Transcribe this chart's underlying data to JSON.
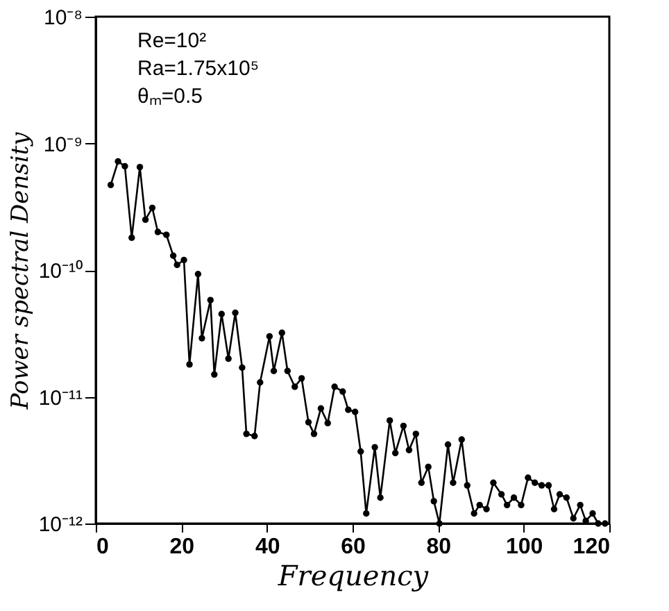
{
  "chart_data": {
    "type": "line",
    "xlabel": "Frequency",
    "ylabel": "Power spectral Density",
    "log": "y",
    "marker": "circle",
    "line_style": "solid",
    "grid": false,
    "annotations": [
      "Re=10²",
      "Ra=1.75x10⁵",
      "θₘ=0.5"
    ],
    "xlim": [
      0,
      120
    ],
    "xticks": [
      0,
      20,
      40,
      60,
      80,
      100,
      120
    ],
    "ylim": [
      1e-12,
      1e-08
    ],
    "yticks": [
      {
        "value": 1e-12,
        "label": "10⁻¹²"
      },
      {
        "value": 1e-11,
        "label": "10⁻¹¹"
      },
      {
        "value": 1e-10,
        "label": "10⁻¹⁰"
      },
      {
        "value": 1e-09,
        "label": "10⁻⁹"
      },
      {
        "value": 1e-08,
        "label": "10⁻⁸"
      }
    ],
    "series": [
      {
        "color": "#000000",
        "x": [
          3.5,
          5.2,
          6.8,
          8.4,
          10.3,
          11.6,
          13.2,
          14.5,
          16.5,
          18.1,
          19.0,
          20.6,
          21.9,
          23.9,
          24.8,
          26.8,
          27.7,
          29.4,
          31.0,
          32.6,
          34.2,
          35.2,
          37.1,
          38.4,
          40.6,
          41.6,
          43.5,
          44.8,
          46.5,
          48.1,
          49.7,
          51.0,
          52.6,
          54.2,
          55.8,
          57.7,
          59.0,
          60.6,
          61.9,
          63.2,
          65.2,
          66.5,
          68.7,
          70.0,
          71.9,
          73.2,
          74.8,
          76.1,
          77.7,
          79.0,
          80.3,
          82.3,
          83.5,
          85.5,
          86.8,
          88.4,
          89.7,
          91.3,
          92.9,
          94.8,
          96.1,
          97.7,
          99.4,
          101.0,
          102.6,
          104.2,
          105.8,
          107.1,
          108.4,
          110.0,
          111.6,
          113.2,
          114.5,
          116.1,
          117.4,
          119.0
        ],
        "values": [
          4.7e-10,
          7.2e-10,
          6.6e-10,
          1.8e-10,
          6.5e-10,
          2.5e-10,
          3.1e-10,
          2e-10,
          1.9e-10,
          1.3e-10,
          1.1e-10,
          1.2e-10,
          1.8e-11,
          9.3e-11,
          2.9e-11,
          5.8e-11,
          1.5e-11,
          4.5e-11,
          2e-11,
          4.6e-11,
          1.7e-11,
          5.1e-12,
          4.9e-12,
          1.3e-11,
          3e-11,
          1.6e-11,
          3.2e-11,
          1.6e-11,
          1.2e-11,
          1.4e-11,
          6.3e-12,
          5.1e-12,
          8.1e-12,
          6.2e-12,
          1.2e-11,
          1.1e-11,
          7.9e-12,
          7.6e-12,
          3.7e-12,
          1.2e-12,
          4e-12,
          1.6e-12,
          6.5e-12,
          3.6e-12,
          5.9e-12,
          3.8e-12,
          5.1e-12,
          2.1e-12,
          2.8e-12,
          1.5e-12,
          1e-12,
          4.2e-12,
          2.1e-12,
          4.6e-12,
          2e-12,
          1.2e-12,
          1.4e-12,
          1.3e-12,
          2.1e-12,
          1.7e-12,
          1.4e-12,
          1.6e-12,
          1.4e-12,
          2.3e-12,
          2.1e-12,
          2e-12,
          2e-12,
          1.3e-12,
          1.7e-12,
          1.6e-12,
          1.1e-12,
          1.4e-12,
          1.05e-12,
          1.2e-12,
          1e-12,
          1e-12
        ]
      }
    ]
  }
}
